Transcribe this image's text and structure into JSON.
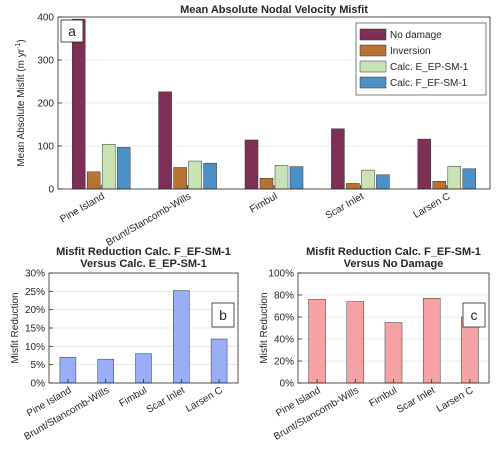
{
  "chart_data": [
    {
      "id": "a",
      "type": "bar",
      "panel_label": "a",
      "title": "Mean Absolute Nodal Velocity Misfit",
      "ylabel_main": "Mean Absolute Misfit (m yr",
      "ylabel_sup": "-1",
      "ylabel_end": ")",
      "ylim": [
        0,
        400
      ],
      "yticks": [
        0,
        100,
        200,
        300,
        400
      ],
      "grid": true,
      "legend_position": "top-right",
      "categories": [
        "Pine Island",
        "Brunt/Stancomb-Wills",
        "Fimbul",
        "Scar Inlet",
        "Larsen C"
      ],
      "series": [
        {
          "name": "No damage",
          "color": "#7e2f55",
          "values": [
            395,
            226,
            114,
            140,
            116
          ]
        },
        {
          "name": "Inversion",
          "color": "#b87333",
          "values": [
            40,
            50,
            25,
            13,
            18
          ]
        },
        {
          "name": "Calc. E_EP-SM-1",
          "color": "#c9e3b5",
          "values": [
            104,
            65,
            55,
            44,
            53
          ]
        },
        {
          "name": "Calc. F_EF-SM-1",
          "color": "#4d90c6",
          "values": [
            97,
            60,
            52,
            33,
            47
          ]
        }
      ]
    },
    {
      "id": "b",
      "type": "bar",
      "panel_label": "b",
      "title_lines": [
        "Misfit Reduction Calc. F_EF-SM-1",
        "Versus Calc. E_EP-SM-1"
      ],
      "ylabel": "Misfit Reduction",
      "ylim": [
        0,
        30
      ],
      "yticks": [
        0,
        5,
        10,
        15,
        20,
        25,
        30
      ],
      "tick_suffix": "%",
      "grid": true,
      "categories": [
        "Pine Island",
        "Brunt/Stancomb-Wills",
        "Fimbul",
        "Scar Inlet",
        "Larsen C"
      ],
      "color": "#9aaef8",
      "values": [
        7,
        6.5,
        8,
        25.2,
        12
      ]
    },
    {
      "id": "c",
      "type": "bar",
      "panel_label": "c",
      "title_lines": [
        "Misfit Reduction Calc. F_EF-SM-1",
        "Versus No Damage"
      ],
      "ylabel": "Misfit Reduction",
      "ylim": [
        0,
        100
      ],
      "yticks": [
        0,
        20,
        40,
        60,
        80,
        100
      ],
      "tick_suffix": "%",
      "grid": true,
      "categories": [
        "Pine Island",
        "Brunt/Stancomb-Wills",
        "Fimbul",
        "Scar Inlet",
        "Larsen C"
      ],
      "color": "#f7a3a6",
      "values": [
        76,
        74,
        55,
        77,
        60
      ]
    }
  ]
}
